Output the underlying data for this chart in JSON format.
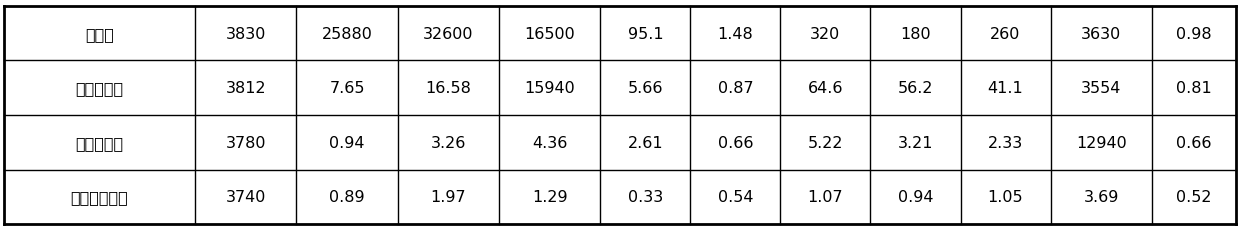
{
  "rows": [
    [
      "酸浸液",
      "3830",
      "25880",
      "32600",
      "16500",
      "95.1",
      "1.48",
      "320",
      "180",
      "260",
      "3630",
      "0.98"
    ],
    [
      "一次萍余液",
      "3812",
      "7.65",
      "16.58",
      "15940",
      "5.66",
      "0.87",
      "64.6",
      "56.2",
      "41.1",
      "3554",
      "0.81"
    ],
    [
      "二次萍余液",
      "3780",
      "0.94",
      "3.26",
      "4.36",
      "2.61",
      "0.66",
      "5.22",
      "3.21",
      "2.33",
      "12940",
      "0.66"
    ],
    [
      "净化富锂溶液",
      "3740",
      "0.89",
      "1.97",
      "1.29",
      "0.33",
      "0.54",
      "1.07",
      "0.94",
      "1.05",
      "3.69",
      "0.52"
    ]
  ],
  "n_cols": 12,
  "n_rows": 4,
  "background_color": "#ffffff",
  "line_color": "#000000",
  "text_color": "#000000",
  "font_size": 11.5,
  "col_widths_ratio": [
    1.7,
    0.9,
    0.9,
    0.9,
    0.9,
    0.8,
    0.8,
    0.8,
    0.8,
    0.8,
    0.9,
    0.75
  ]
}
